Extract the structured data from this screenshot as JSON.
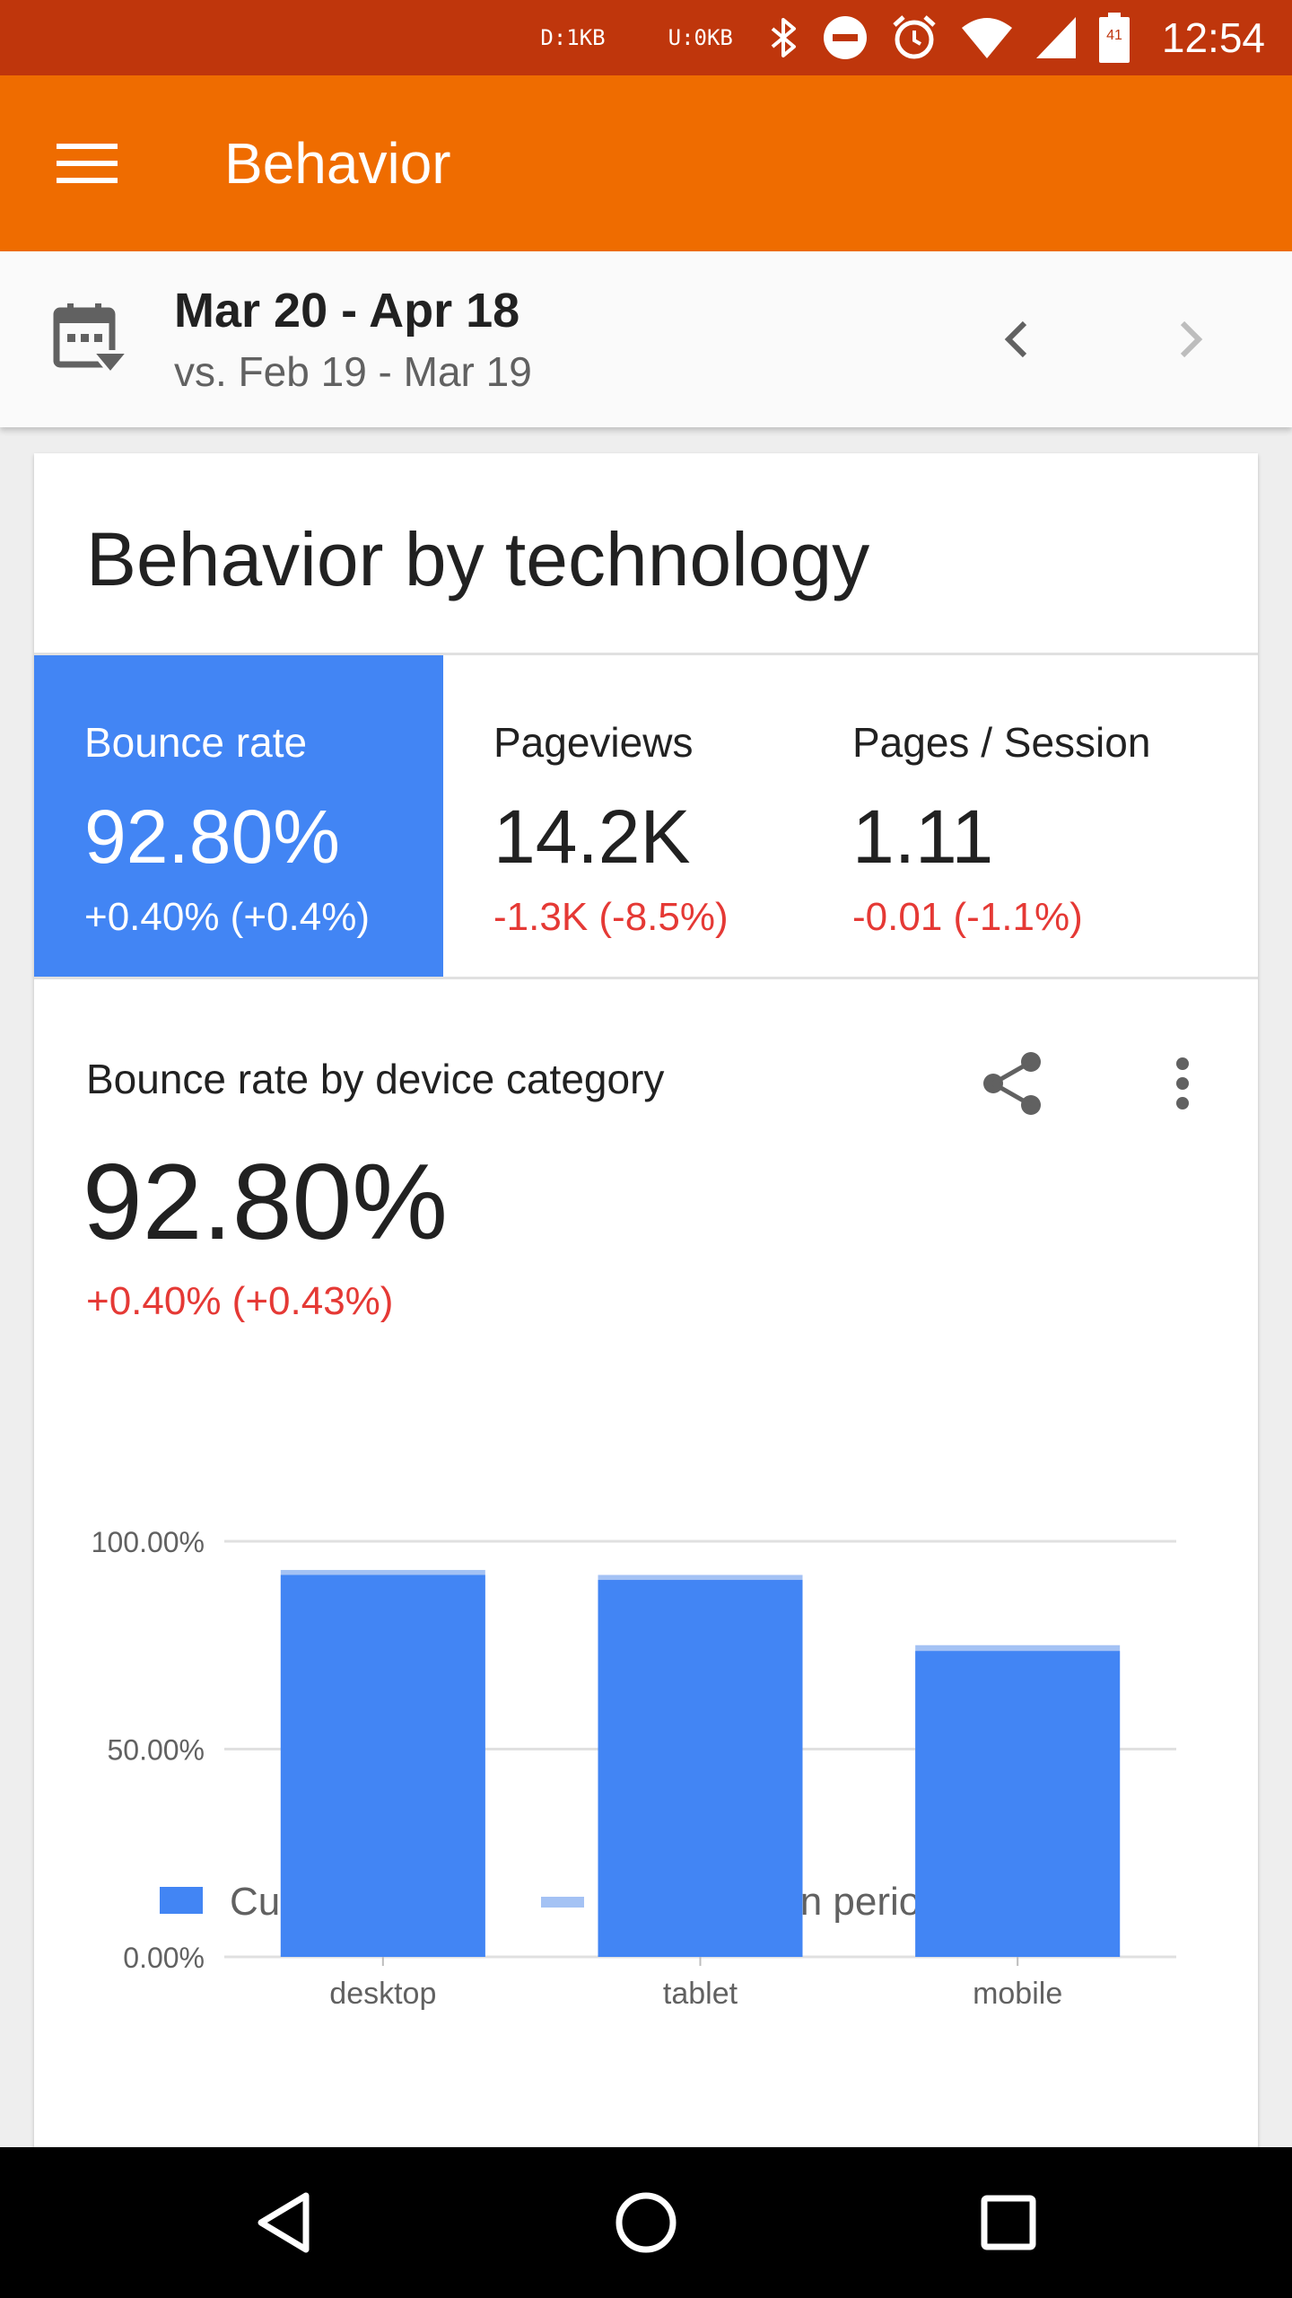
{
  "status_bar": {
    "download": "D:1KB",
    "upload": "U:0KB",
    "battery": "41",
    "time": "12:54"
  },
  "app_bar": {
    "title": "Behavior"
  },
  "date_bar": {
    "range": "Mar 20 - Apr 18",
    "comparison": "vs. Feb 19 - Mar 19"
  },
  "card": {
    "title": "Behavior by technology",
    "metrics": [
      {
        "label": "Bounce rate",
        "value": "92.80%",
        "change": "+0.40% (+0.4%)",
        "selected": true
      },
      {
        "label": "Pageviews",
        "value": "14.2K",
        "change": "-1.3K (-8.5%)",
        "selected": false
      },
      {
        "label": "Pages / Session",
        "value": "1.11",
        "change": "-0.01 (-1.1%)",
        "selected": false
      }
    ],
    "section_title": "Bounce rate by device category",
    "big_value": "92.80%",
    "big_change": "+0.40% (+0.43%)"
  },
  "colors": {
    "current": "#4285f4",
    "comparison": "#a4c2f4",
    "negative": "#e53935",
    "app_bar": "#ef6c00",
    "status_bar": "#bf360c"
  },
  "chart_data": {
    "type": "bar",
    "categories": [
      "desktop",
      "tablet",
      "mobile"
    ],
    "series": [
      {
        "name": "Current period",
        "values": [
          91.9,
          90.7,
          73.6
        ]
      },
      {
        "name": "Comparison period",
        "values": [
          93.1,
          91.9,
          75.0
        ]
      }
    ],
    "y_ticks": [
      "100.00%",
      "50.00%",
      "0.00%"
    ],
    "ylim": [
      0,
      100
    ],
    "legend": "top",
    "grid": true
  }
}
